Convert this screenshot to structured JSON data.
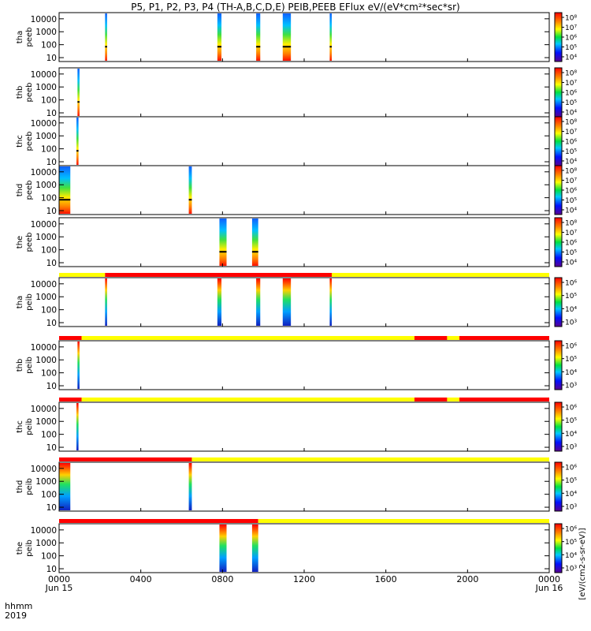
{
  "chart_data": {
    "type": "heatmap",
    "title": "P5, P1, P2, P3, P4 (TH-A,B,C,D,E) PEIB,PEEB EFlux eV/(eV*cm²*sec*sr)",
    "x_axis": {
      "corner_labels": [
        "hhmm",
        "2019"
      ],
      "ticks": [
        {
          "label": "0000",
          "sub": "Jun 15",
          "hours": 0
        },
        {
          "label": "0400",
          "sub": "",
          "hours": 4
        },
        {
          "label": "0800",
          "sub": "",
          "hours": 8
        },
        {
          "label": "1200",
          "sub": "",
          "hours": 12
        },
        {
          "label": "1600",
          "sub": "",
          "hours": 16
        },
        {
          "label": "2000",
          "sub": "",
          "hours": 20
        },
        {
          "label": "0000",
          "sub": "Jun 16",
          "hours": 24
        }
      ],
      "range_hours": [
        0,
        24
      ]
    },
    "y_ticks": [
      "10",
      "100",
      "1000",
      "10000"
    ],
    "y_scale": "log",
    "colorbar_label": "[eV/(cm2-s-sr-eV)]",
    "colors": {
      "mode_red": "#ff0000",
      "mode_yellow": "#ffff00",
      "frame": "#000000"
    },
    "panels": [
      {
        "name": "tha peeb",
        "ylabel": [
          "tha",
          "peeb"
        ],
        "cbar_ticks": [
          "10⁴",
          "10⁵",
          "10⁶",
          "10⁷",
          "10⁸"
        ],
        "bursts_hours": [
          [
            2.25,
            2.35
          ],
          [
            7.75,
            7.95
          ],
          [
            9.65,
            9.85
          ],
          [
            10.95,
            11.35
          ],
          [
            13.25,
            13.35
          ]
        ],
        "mode_bar": []
      },
      {
        "name": "thb peeb",
        "ylabel": [
          "thb",
          "peeb"
        ],
        "cbar_ticks": [
          "10⁴",
          "10⁵",
          "10⁶",
          "10⁷",
          "10⁸"
        ],
        "bursts_hours": [
          [
            0.9,
            1.0
          ]
        ],
        "mode_bar": []
      },
      {
        "name": "thc peeb",
        "ylabel": [
          "thc",
          "peeb"
        ],
        "cbar_ticks": [
          "10⁴",
          "10⁵",
          "10⁶",
          "10⁷",
          "10⁸"
        ],
        "bursts_hours": [
          [
            0.85,
            0.95
          ]
        ],
        "mode_bar": []
      },
      {
        "name": "thd peeb",
        "ylabel": [
          "thd",
          "peeb"
        ],
        "cbar_ticks": [
          "10⁴",
          "10⁵",
          "10⁶",
          "10⁷",
          "10⁸"
        ],
        "bursts_hours": [
          [
            0.0,
            0.55
          ],
          [
            6.35,
            6.5
          ]
        ],
        "mode_bar": []
      },
      {
        "name": "the peeb",
        "ylabel": [
          "the",
          "peeb"
        ],
        "cbar_ticks": [
          "10⁴",
          "10⁵",
          "10⁶",
          "10⁷",
          "10⁸"
        ],
        "bursts_hours": [
          [
            7.85,
            8.2
          ],
          [
            9.45,
            9.75
          ]
        ],
        "mode_bar": []
      },
      {
        "name": "tha peib",
        "ylabel": [
          "tha",
          "peib"
        ],
        "cbar_ticks": [
          "10³",
          "10⁴",
          "10⁵",
          "10⁶"
        ],
        "bursts_hours": [
          [
            2.25,
            2.35
          ],
          [
            7.75,
            7.95
          ],
          [
            9.65,
            9.85
          ],
          [
            10.95,
            11.35
          ],
          [
            13.25,
            13.35
          ]
        ],
        "mode_bar": [
          {
            "hours": [
              0,
              2.25
            ],
            "color": "yellow"
          },
          {
            "hours": [
              2.25,
              13.35
            ],
            "color": "red"
          },
          {
            "hours": [
              13.35,
              24
            ],
            "color": "yellow"
          }
        ]
      },
      {
        "name": "thb peib",
        "ylabel": [
          "thb",
          "peib"
        ],
        "cbar_ticks": [
          "10³",
          "10⁴",
          "10⁵",
          "10⁶"
        ],
        "bursts_hours": [
          [
            0.9,
            1.0
          ]
        ],
        "mode_bar": [
          {
            "hours": [
              0,
              1.1
            ],
            "color": "red"
          },
          {
            "hours": [
              1.1,
              17.4
            ],
            "color": "yellow"
          },
          {
            "hours": [
              17.4,
              19.0
            ],
            "color": "red"
          },
          {
            "hours": [
              19.0,
              19.6
            ],
            "color": "yellow"
          },
          {
            "hours": [
              19.6,
              24
            ],
            "color": "red"
          }
        ]
      },
      {
        "name": "thc peib",
        "ylabel": [
          "thc",
          "peib"
        ],
        "cbar_ticks": [
          "10³",
          "10⁴",
          "10⁵",
          "10⁶"
        ],
        "bursts_hours": [
          [
            0.85,
            0.95
          ]
        ],
        "mode_bar": [
          {
            "hours": [
              0,
              1.1
            ],
            "color": "red"
          },
          {
            "hours": [
              1.1,
              17.4
            ],
            "color": "yellow"
          },
          {
            "hours": [
              17.4,
              19.0
            ],
            "color": "red"
          },
          {
            "hours": [
              19.0,
              19.6
            ],
            "color": "yellow"
          },
          {
            "hours": [
              19.6,
              24
            ],
            "color": "red"
          }
        ]
      },
      {
        "name": "thd peib",
        "ylabel": [
          "thd",
          "peib"
        ],
        "cbar_ticks": [
          "10³",
          "10⁴",
          "10⁵",
          "10⁶"
        ],
        "bursts_hours": [
          [
            0.0,
            0.55
          ],
          [
            6.35,
            6.5
          ]
        ],
        "mode_bar": [
          {
            "hours": [
              0,
              6.5
            ],
            "color": "red"
          },
          {
            "hours": [
              6.5,
              24
            ],
            "color": "yellow"
          }
        ]
      },
      {
        "name": "the peib",
        "ylabel": [
          "the",
          "peib"
        ],
        "cbar_ticks": [
          "10³",
          "10⁴",
          "10⁵",
          "10⁶"
        ],
        "bursts_hours": [
          [
            7.85,
            8.2
          ],
          [
            9.45,
            9.75
          ]
        ],
        "mode_bar": [
          {
            "hours": [
              0,
              9.75
            ],
            "color": "red"
          },
          {
            "hours": [
              9.75,
              24
            ],
            "color": "yellow"
          }
        ]
      }
    ]
  }
}
